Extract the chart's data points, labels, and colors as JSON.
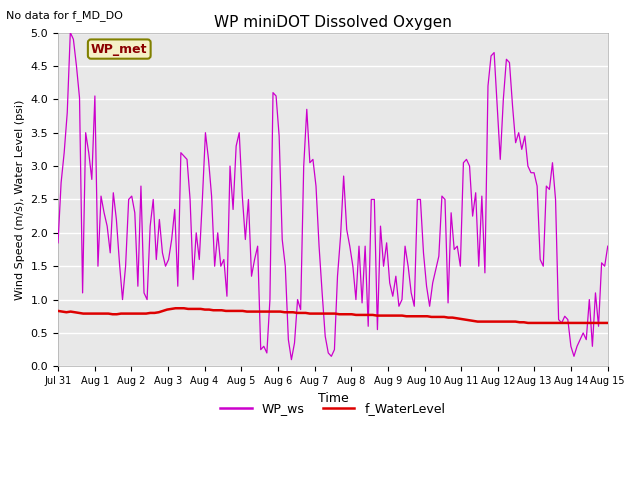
{
  "title": "WP miniDOT Dissolved Oxygen",
  "top_left_text": "No data for f_MD_DO",
  "ylabel": "Wind Speed (m/s), Water Level (psi)",
  "xlabel": "Time",
  "ylim": [
    0.0,
    5.0
  ],
  "background_color": "#e8e8e8",
  "legend_box_label": "WP_met",
  "legend_entries": [
    "WP_ws",
    "f_WaterLevel"
  ],
  "line_colors": [
    "#cc00cc",
    "#dd0000"
  ],
  "x_tick_labels": [
    "Jul 31",
    "Aug 1",
    "Aug 2",
    "Aug 3",
    "Aug 4",
    "Aug 5",
    "Aug 6",
    "Aug 7",
    "Aug 8",
    "Aug 9",
    "Aug 10",
    "Aug 11",
    "Aug 12",
    "Aug 13",
    "Aug 14",
    "Aug 15"
  ],
  "x_tick_positions": [
    0,
    8,
    16,
    24,
    32,
    40,
    48,
    56,
    64,
    72,
    80,
    88,
    96,
    104,
    112,
    120
  ],
  "wp_ws": [
    1.85,
    2.75,
    3.2,
    3.8,
    5.0,
    4.9,
    4.5,
    4.02,
    1.1,
    3.5,
    3.2,
    2.8,
    4.05,
    1.5,
    2.55,
    2.3,
    2.1,
    1.7,
    2.6,
    2.2,
    1.55,
    1.0,
    1.5,
    2.5,
    2.55,
    2.3,
    1.2,
    2.7,
    1.1,
    1.0,
    2.1,
    2.5,
    1.6,
    2.2,
    1.7,
    1.5,
    1.6,
    1.9,
    2.35,
    1.2,
    3.2,
    3.15,
    3.1,
    2.5,
    1.3,
    2.0,
    1.6,
    2.5,
    3.5,
    3.1,
    2.55,
    1.5,
    2.0,
    1.5,
    1.6,
    1.05,
    3.0,
    2.35,
    3.3,
    3.5,
    2.55,
    1.9,
    2.5,
    1.35,
    1.6,
    1.8,
    0.25,
    0.3,
    0.2,
    1.0,
    4.1,
    4.05,
    3.45,
    1.9,
    1.5,
    0.4,
    0.1,
    0.35,
    1.0,
    0.85,
    3.0,
    3.85,
    3.05,
    3.1,
    2.7,
    1.8,
    1.1,
    0.45,
    0.2,
    0.15,
    0.25,
    1.35,
    1.95,
    2.85,
    2.05,
    1.8,
    1.5,
    1.0,
    1.8,
    0.95,
    1.8,
    0.6,
    2.5,
    2.5,
    0.55,
    2.1,
    1.5,
    1.85,
    1.25,
    1.05,
    1.35,
    0.9,
    1.0,
    1.8,
    1.5,
    1.1,
    0.9,
    2.5,
    2.5,
    1.7,
    1.2,
    0.9,
    1.25,
    1.45,
    1.65,
    2.55,
    2.5,
    0.95,
    2.3,
    1.75,
    1.8,
    1.5,
    3.05,
    3.1,
    3.0,
    2.25,
    2.6,
    1.5,
    2.55,
    1.4,
    4.2,
    4.65,
    4.7,
    3.9,
    3.1,
    4.0,
    4.6,
    4.55,
    3.9,
    3.35,
    3.5,
    3.25,
    3.45,
    3.0,
    2.9,
    2.9,
    2.7,
    1.6,
    1.5,
    2.7,
    2.65,
    3.05,
    2.5,
    0.7,
    0.65,
    0.75,
    0.7,
    0.3,
    0.15,
    0.3,
    0.4,
    0.5,
    0.4,
    1.0,
    0.3,
    1.1,
    0.6,
    1.55,
    1.5,
    1.8
  ],
  "f_wl": [
    0.83,
    0.82,
    0.81,
    0.82,
    0.81,
    0.8,
    0.79,
    0.79,
    0.79,
    0.79,
    0.79,
    0.79,
    0.79,
    0.78,
    0.78,
    0.79,
    0.79,
    0.79,
    0.79,
    0.79,
    0.79,
    0.79,
    0.8,
    0.8,
    0.81,
    0.83,
    0.85,
    0.86,
    0.87,
    0.87,
    0.87,
    0.86,
    0.86,
    0.86,
    0.86,
    0.85,
    0.85,
    0.84,
    0.84,
    0.84,
    0.83,
    0.83,
    0.83,
    0.83,
    0.83,
    0.82,
    0.82,
    0.82,
    0.82,
    0.82,
    0.82,
    0.82,
    0.82,
    0.82,
    0.81,
    0.81,
    0.81,
    0.8,
    0.8,
    0.8,
    0.79,
    0.79,
    0.79,
    0.79,
    0.79,
    0.79,
    0.79,
    0.78,
    0.78,
    0.78,
    0.78,
    0.77,
    0.77,
    0.77,
    0.77,
    0.77,
    0.76,
    0.76,
    0.76,
    0.76,
    0.76,
    0.76,
    0.76,
    0.75,
    0.75,
    0.75,
    0.75,
    0.75,
    0.75,
    0.74,
    0.74,
    0.74,
    0.74,
    0.73,
    0.73,
    0.72,
    0.71,
    0.7,
    0.69,
    0.68,
    0.67,
    0.67,
    0.67,
    0.67,
    0.67,
    0.67,
    0.67,
    0.67,
    0.67,
    0.67,
    0.66,
    0.66,
    0.65,
    0.65,
    0.65,
    0.65,
    0.65,
    0.65,
    0.65,
    0.65,
    0.65,
    0.65,
    0.65,
    0.65,
    0.65,
    0.65,
    0.65,
    0.65,
    0.65,
    0.65,
    0.65,
    0.65
  ]
}
